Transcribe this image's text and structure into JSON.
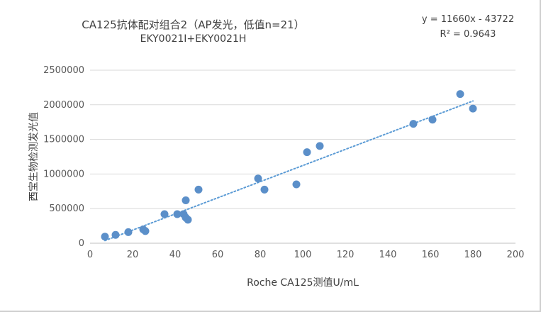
{
  "chart_data": {
    "type": "scatter",
    "title": "CA125抗体配对组合2（AP发光，低值n=21）",
    "subtitle": "EKY0021I+EKY0021H",
    "xlabel": "Roche CA125测值U/mL",
    "ylabel": "西宝生物检测发光值",
    "xlim": [
      0,
      200
    ],
    "ylim": [
      0,
      2500000
    ],
    "x_ticks": [
      0,
      20,
      40,
      60,
      80,
      100,
      120,
      140,
      160,
      180,
      200
    ],
    "y_ticks": [
      0,
      500000,
      1000000,
      1500000,
      2000000,
      2500000
    ],
    "x_tick_labels": [
      "0",
      "20",
      "40",
      "60",
      "80",
      "100",
      "120",
      "140",
      "160",
      "180",
      "200"
    ],
    "y_tick_labels": [
      "0",
      "500000",
      "1000000",
      "1500000",
      "2000000",
      "2500000"
    ],
    "grid": "horizontal",
    "trendline": {
      "type": "linear",
      "slope": 11660,
      "intercept": -43722,
      "x_range": [
        7,
        180
      ],
      "style": "dotted"
    },
    "equation": "y = 11660x - 43722",
    "r_squared": "R² = 0.9643",
    "marker_color": "#5b8fc9",
    "points": [
      [
        7,
        95000
      ],
      [
        12,
        120000
      ],
      [
        18,
        160000
      ],
      [
        25,
        200000
      ],
      [
        26,
        175000
      ],
      [
        35,
        420000
      ],
      [
        41,
        420000
      ],
      [
        44,
        420000
      ],
      [
        45,
        620000
      ],
      [
        45,
        370000
      ],
      [
        46,
        340000
      ],
      [
        51,
        775000
      ],
      [
        79,
        935000
      ],
      [
        82,
        775000
      ],
      [
        97,
        850000
      ],
      [
        102,
        1315000
      ],
      [
        108,
        1405000
      ],
      [
        152,
        1725000
      ],
      [
        161,
        1785000
      ],
      [
        174,
        2155000
      ],
      [
        180,
        1945000
      ]
    ]
  }
}
